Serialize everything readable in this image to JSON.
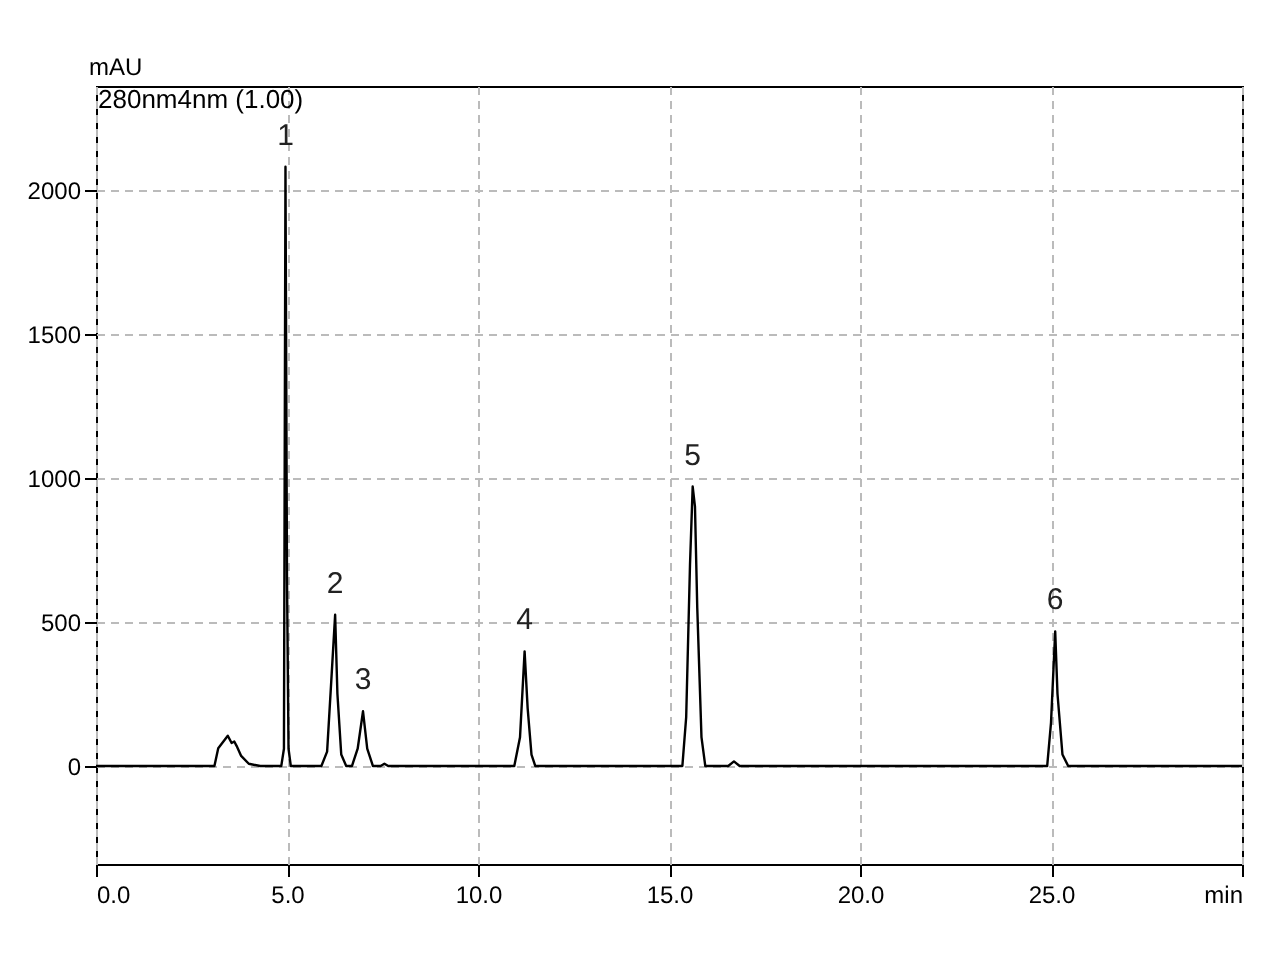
{
  "chart_data": {
    "type": "line",
    "ylabel": "mAU",
    "annotations": [
      "280nm4nm (1.00)",
      {
        "text": "1",
        "x": 4.96,
        "y": 2080
      },
      {
        "text": "2",
        "x": 6.26,
        "y": 525
      },
      {
        "text": "3",
        "x": 6.99,
        "y": 190
      },
      {
        "text": "4",
        "x": 11.22,
        "y": 398
      },
      {
        "text": "5",
        "x": 15.62,
        "y": 970
      },
      {
        "text": "6",
        "x": 25.11,
        "y": 467
      }
    ],
    "x": [
      0,
      3.1,
      3.2,
      3.45,
      3.55,
      3.62,
      3.68,
      3.8,
      4.0,
      4.3,
      4.85,
      4.92,
      4.96,
      5.0,
      5.04,
      5.1,
      5.9,
      6.05,
      6.17,
      6.26,
      6.32,
      6.42,
      6.55,
      6.7,
      6.85,
      6.99,
      7.1,
      7.25,
      7.45,
      7.55,
      7.65,
      10.95,
      11.1,
      11.22,
      11.3,
      11.4,
      11.5,
      15.35,
      15.45,
      15.55,
      15.62,
      15.68,
      15.74,
      15.85,
      15.95,
      16.55,
      16.7,
      16.85,
      24.9,
      25.0,
      25.11,
      25.17,
      25.3,
      25.45,
      30
    ],
    "series": [
      {
        "color": "#000000",
        "values": [
          0,
          0,
          62,
          105,
          80,
          85,
          70,
          35,
          8,
          0,
          0,
          60,
          2080,
          650,
          60,
          0,
          0,
          50,
          320,
          525,
          250,
          40,
          0,
          0,
          60,
          190,
          60,
          0,
          0,
          8,
          0,
          0,
          100,
          398,
          200,
          40,
          0,
          0,
          170,
          700,
          970,
          900,
          548,
          100,
          0,
          0,
          16,
          0,
          0,
          150,
          467,
          250,
          40,
          0,
          0
        ]
      }
    ],
    "xlim": [
      0,
      30
    ],
    "xticks": [
      {
        "value": 0,
        "label": "0.0"
      },
      {
        "value": 5,
        "label": "5.0"
      },
      {
        "value": 10,
        "label": "10.0"
      },
      {
        "value": 15,
        "label": "15.0"
      },
      {
        "value": 20,
        "label": "20.0"
      },
      {
        "value": 25,
        "label": "25.0"
      },
      {
        "value": 30,
        "label": "min"
      }
    ],
    "ylim": [
      -340,
      2360
    ],
    "yticks": [
      0,
      500,
      1000,
      1500,
      2000
    ],
    "grid": true
  }
}
